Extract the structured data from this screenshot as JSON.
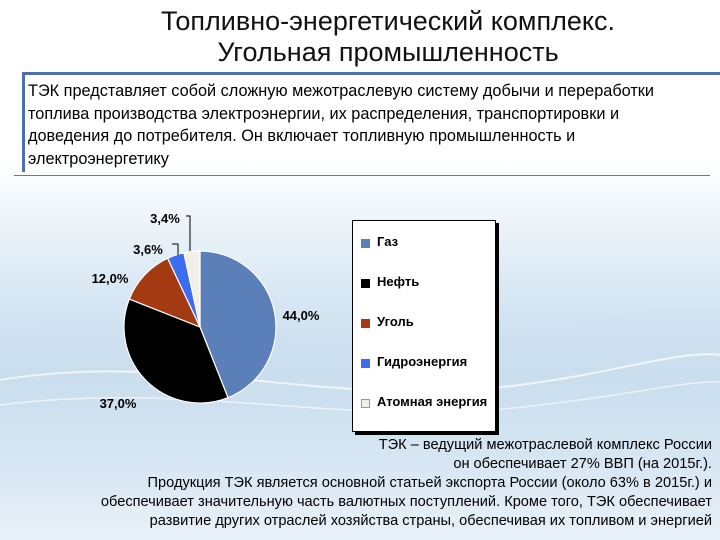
{
  "title": {
    "line1": "Топливно-энергетический комплекс.",
    "line2": "Угольная промышленность"
  },
  "intro": {
    "lines": [
      "ТЭК представляет собой сложную межотраслевую систему добычи и переработки",
      "топлива производства электроэнергии, их распределения, транспортировки и",
      "доведения до потребителя. Он включает топливную промышленность и",
      "электроэнергетику"
    ]
  },
  "chart_data": {
    "type": "pie",
    "categories": [
      "Газ",
      "Нефть",
      "Уголь",
      "Гидроэнергия",
      "Атомная энергия"
    ],
    "values": [
      44.0,
      37.0,
      12.0,
      3.6,
      3.4
    ],
    "data_labels": [
      "44,0%",
      "37,0%",
      "12,0%",
      "3,6%",
      "3,4%"
    ],
    "colors": [
      "#5b7fb8",
      "#000000",
      "#a33a12",
      "#3c6cf0",
      "#f2f0e6"
    ],
    "legend_position": "right",
    "title": ""
  },
  "legend": {
    "items": [
      {
        "label": "Газ",
        "color": "#5b7fb8"
      },
      {
        "label": "Нефть",
        "color": "#000000"
      },
      {
        "label": "Уголь",
        "color": "#a33a12"
      },
      {
        "label": "Гидроэнергия",
        "color": "#3c6cf0"
      },
      {
        "label": "Атомная энергия",
        "color": "#f2f0e6"
      }
    ]
  },
  "footer": {
    "lines": [
      "ТЭК – ведущий межотраслевой комплекс России",
      "он обеспечивает 27% ВВП (на 2015г.).",
      "Продукция ТЭК является основной статьей экспорта России (около 63% в 2015г.) и",
      "обеспечивает значительную часть валютных поступлений. Кроме того, ТЭК обеспечивает",
      "развитие других отраслей хозяйства страны, обеспечивая их топливом и энергией"
    ]
  }
}
